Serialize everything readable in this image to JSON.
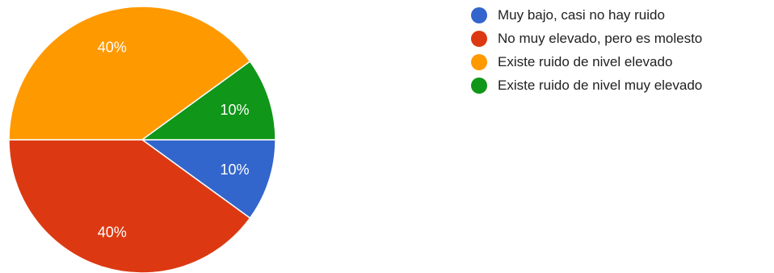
{
  "chart_data": {
    "type": "pie",
    "categories": [
      "Muy bajo, casi no hay ruido",
      "No muy elevado, pero es molesto",
      "Existe ruido de nivel elevado",
      "Existe ruido de nivel muy elevado"
    ],
    "values": [
      10,
      40,
      40,
      10
    ],
    "labels": [
      "10%",
      "40%",
      "40%",
      "10%"
    ],
    "colors": [
      "#3366cc",
      "#dc3912",
      "#ff9900",
      "#109618"
    ],
    "legend_position": "right",
    "start_angle_deg": 0,
    "direction": "clockwise"
  }
}
